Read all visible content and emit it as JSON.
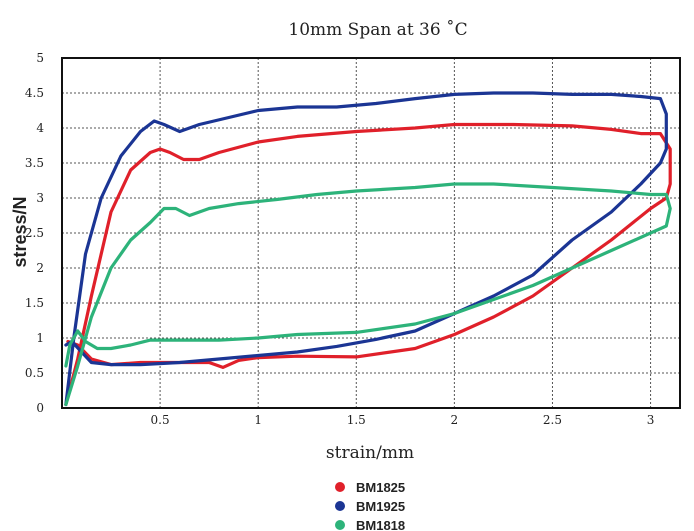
{
  "chart_data": {
    "type": "line",
    "title": "10mm Span at 36 ˚C",
    "xlabel": "strain/mm",
    "ylabel": "stress/N",
    "xlim": [
      0,
      3.15
    ],
    "ylim": [
      0,
      5
    ],
    "x_ticks": [
      "0.5",
      "1",
      "1.5",
      "2",
      "2.5",
      "3"
    ],
    "x_tick_values": [
      0.5,
      1,
      1.5,
      2,
      2.5,
      3
    ],
    "y_ticks": [
      "0",
      "0.5",
      "1",
      "1.5",
      "2",
      "2.5",
      "3",
      "3.5",
      "4",
      "4.5",
      "5"
    ],
    "y_tick_values": [
      0,
      0.5,
      1,
      1.5,
      2,
      2.5,
      3,
      3.5,
      4,
      4.5,
      5
    ],
    "grid": true,
    "legend_position": "bottom-center",
    "series": [
      {
        "name": "BM1825",
        "color": "#e0202a",
        "x": [
          0.02,
          0.08,
          0.15,
          0.25,
          0.35,
          0.45,
          0.5,
          0.55,
          0.62,
          0.7,
          0.8,
          1.0,
          1.2,
          1.5,
          1.8,
          2.0,
          2.3,
          2.6,
          2.8,
          2.95,
          3.05,
          3.1,
          3.1,
          3.08,
          3.0,
          2.8,
          2.6,
          2.4,
          2.2,
          2.0,
          1.8,
          1.5,
          1.2,
          1.0,
          0.9,
          0.82,
          0.75,
          0.6,
          0.4,
          0.25,
          0.15,
          0.08,
          0.03
        ],
        "y": [
          0.05,
          0.7,
          1.6,
          2.8,
          3.4,
          3.65,
          3.7,
          3.65,
          3.55,
          3.55,
          3.65,
          3.8,
          3.88,
          3.95,
          4.0,
          4.05,
          4.05,
          4.03,
          3.98,
          3.92,
          3.92,
          3.7,
          3.2,
          3.0,
          2.85,
          2.4,
          2.0,
          1.6,
          1.3,
          1.05,
          0.85,
          0.73,
          0.74,
          0.72,
          0.68,
          0.58,
          0.65,
          0.65,
          0.65,
          0.62,
          0.7,
          0.9,
          0.95
        ]
      },
      {
        "name": "BM1925",
        "color": "#1b3594",
        "x": [
          0.02,
          0.06,
          0.12,
          0.2,
          0.3,
          0.4,
          0.47,
          0.52,
          0.6,
          0.7,
          0.85,
          1.0,
          1.2,
          1.4,
          1.6,
          1.8,
          2.0,
          2.2,
          2.4,
          2.6,
          2.8,
          2.95,
          3.05,
          3.08,
          3.08,
          3.05,
          2.95,
          2.8,
          2.6,
          2.4,
          2.2,
          2.0,
          1.8,
          1.6,
          1.4,
          1.2,
          1.0,
          0.8,
          0.6,
          0.4,
          0.25,
          0.15,
          0.1,
          0.05,
          0.02
        ],
        "y": [
          0.05,
          1.0,
          2.2,
          3.0,
          3.6,
          3.95,
          4.1,
          4.05,
          3.95,
          4.05,
          4.15,
          4.25,
          4.3,
          4.3,
          4.35,
          4.42,
          4.48,
          4.5,
          4.5,
          4.48,
          4.48,
          4.45,
          4.42,
          4.2,
          3.7,
          3.5,
          3.2,
          2.8,
          2.4,
          1.9,
          1.6,
          1.35,
          1.1,
          0.98,
          0.88,
          0.8,
          0.75,
          0.7,
          0.65,
          0.62,
          0.62,
          0.65,
          0.8,
          0.95,
          0.9
        ]
      },
      {
        "name": "BM1818",
        "color": "#2db37a",
        "x": [
          0.02,
          0.08,
          0.15,
          0.25,
          0.35,
          0.45,
          0.52,
          0.58,
          0.65,
          0.75,
          0.9,
          1.1,
          1.3,
          1.5,
          1.8,
          2.0,
          2.2,
          2.5,
          2.8,
          3.0,
          3.08,
          3.1,
          3.08,
          3.0,
          2.8,
          2.6,
          2.4,
          2.2,
          2.0,
          1.8,
          1.5,
          1.2,
          1.0,
          0.8,
          0.6,
          0.45,
          0.35,
          0.25,
          0.18,
          0.12,
          0.08,
          0.04,
          0.02
        ],
        "y": [
          0.05,
          0.6,
          1.3,
          2.0,
          2.4,
          2.65,
          2.85,
          2.85,
          2.75,
          2.85,
          2.92,
          2.98,
          3.05,
          3.1,
          3.15,
          3.2,
          3.2,
          3.15,
          3.1,
          3.05,
          3.05,
          2.85,
          2.6,
          2.5,
          2.25,
          2.0,
          1.75,
          1.55,
          1.35,
          1.2,
          1.08,
          1.05,
          1.0,
          0.97,
          0.97,
          0.97,
          0.9,
          0.85,
          0.85,
          0.95,
          1.1,
          0.9,
          0.6
        ]
      }
    ]
  }
}
